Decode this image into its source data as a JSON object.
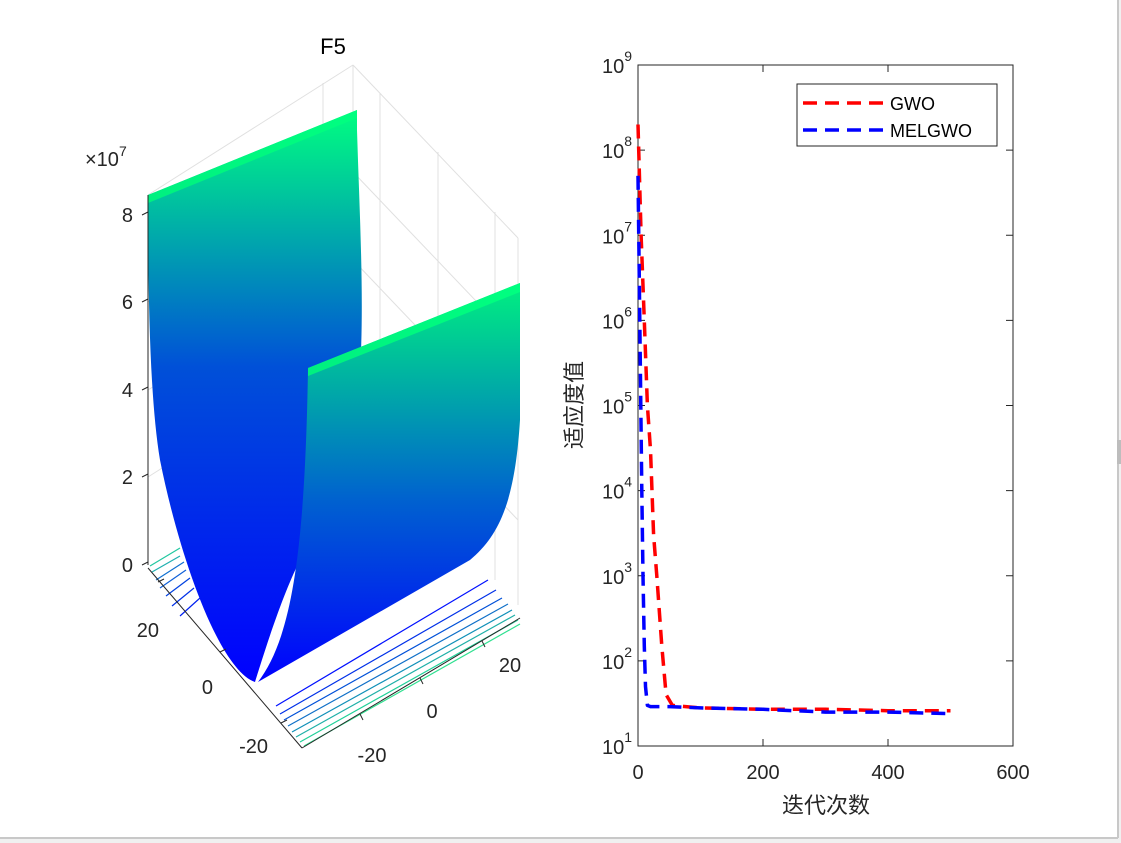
{
  "chart_data": [
    {
      "type": "surface",
      "title": "F5",
      "z_exponent_label": "×10",
      "z_exponent": "7",
      "z_ticks": [
        "0",
        "2",
        "4",
        "6",
        "8"
      ],
      "x_ticks": [
        "-20",
        "0",
        "20"
      ],
      "y_ticks": [
        "-20",
        "0",
        "20"
      ],
      "zlim": [
        0,
        8
      ],
      "colormap": [
        "#0000ff",
        "#00ff80"
      ],
      "grid": true
    },
    {
      "type": "line",
      "xlabel": "迭代次数",
      "ylabel": "适应度值",
      "xlim": [
        0,
        600
      ],
      "ylim": [
        10,
        1000000000
      ],
      "yscale": "log",
      "x_ticks": [
        "0",
        "200",
        "400",
        "600"
      ],
      "y_ticks": [
        {
          "base": "10",
          "exp": "1"
        },
        {
          "base": "10",
          "exp": "2"
        },
        {
          "base": "10",
          "exp": "3"
        },
        {
          "base": "10",
          "exp": "4"
        },
        {
          "base": "10",
          "exp": "5"
        },
        {
          "base": "10",
          "exp": "6"
        },
        {
          "base": "10",
          "exp": "7"
        },
        {
          "base": "10",
          "exp": "8"
        },
        {
          "base": "10",
          "exp": "9"
        }
      ],
      "legend_position": "top-right",
      "series": [
        {
          "name": "GWO",
          "color": "#ff0000",
          "points": [
            [
              0,
              200000000
            ],
            [
              5,
              10000000
            ],
            [
              10,
              1000000
            ],
            [
              15,
              100000
            ],
            [
              20,
              30000
            ],
            [
              25,
              3000
            ],
            [
              30,
              1000
            ],
            [
              38,
              150
            ],
            [
              45,
              40
            ],
            [
              55,
              30
            ],
            [
              100,
              28
            ],
            [
              200,
              27
            ],
            [
              300,
              27
            ],
            [
              400,
              26
            ],
            [
              500,
              26
            ]
          ]
        },
        {
          "name": "MELGWO",
          "color": "#0000ff",
          "points": [
            [
              0,
              50000000
            ],
            [
              2,
              3000000
            ],
            [
              4,
              200000
            ],
            [
              6,
              10000
            ],
            [
              8,
              1000
            ],
            [
              10,
              150
            ],
            [
              12,
              50
            ],
            [
              15,
              30
            ],
            [
              20,
              29
            ],
            [
              50,
              29
            ],
            [
              100,
              28
            ],
            [
              200,
              27
            ],
            [
              300,
              25
            ],
            [
              400,
              25
            ],
            [
              500,
              24
            ]
          ]
        }
      ]
    }
  ]
}
